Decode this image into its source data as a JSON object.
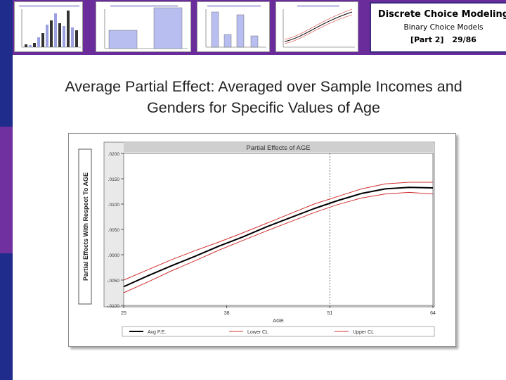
{
  "header": {
    "title": "Discrete Choice Modeling",
    "subtitle": "Binary Choice Models",
    "part": "[Part 2]",
    "page": "29/86",
    "accent_color": "#6a2c9a"
  },
  "slide": {
    "heading_line1": "Average Partial Effect: Averaged over Sample Incomes and",
    "heading_line2": "Genders for Specific Values of Age"
  },
  "chart_data": {
    "type": "line",
    "title": "Partial Effects of AGE",
    "xlabel": "AGE",
    "ylabel": "Partial Effects With Respect To AGE",
    "xlim": [
      25,
      64
    ],
    "ylim": [
      -0.01,
      0.02
    ],
    "x_ticks": [
      25,
      38,
      51,
      64
    ],
    "x_tick_labels": [
      "25",
      "38",
      "51",
      "64"
    ],
    "y_ticks": [
      -0.01,
      -0.005,
      0,
      0.005,
      0.01,
      0.015,
      0.02
    ],
    "y_tick_labels": [
      "-.0100",
      "-.0050",
      ".0000",
      ".0050",
      ".0100",
      ".0150",
      ".0200"
    ],
    "reference_line_x": 51,
    "grid": false,
    "legend_position": "bottom",
    "series": [
      {
        "name": "Avg P.E.",
        "color": "#000000",
        "x": [
          25,
          28,
          31,
          34,
          37,
          40,
          43,
          46,
          49,
          52,
          55,
          58,
          61,
          64
        ],
        "y": [
          -0.0063,
          -0.0042,
          -0.0022,
          -0.0003,
          0.0017,
          0.0035,
          0.0055,
          0.0073,
          0.0091,
          0.0107,
          0.0121,
          0.013,
          0.0133,
          0.0132
        ]
      },
      {
        "name": "Lower CL",
        "color": "#d03030",
        "x": [
          25,
          28,
          31,
          34,
          37,
          40,
          43,
          46,
          49,
          52,
          55,
          58,
          61,
          64
        ],
        "y": [
          -0.0075,
          -0.0054,
          -0.0032,
          -0.0012,
          0.0009,
          0.0028,
          0.0047,
          0.0065,
          0.0083,
          0.0099,
          0.0112,
          0.012,
          0.0123,
          0.012
        ]
      },
      {
        "name": "Upper CL",
        "color": "#d03030",
        "x": [
          25,
          28,
          31,
          34,
          37,
          40,
          43,
          46,
          49,
          52,
          55,
          58,
          61,
          64
        ],
        "y": [
          -0.005,
          -0.003,
          -0.001,
          0.0008,
          0.0025,
          0.0043,
          0.0062,
          0.0081,
          0.01,
          0.0115,
          0.013,
          0.014,
          0.0143,
          0.0143
        ]
      }
    ]
  }
}
